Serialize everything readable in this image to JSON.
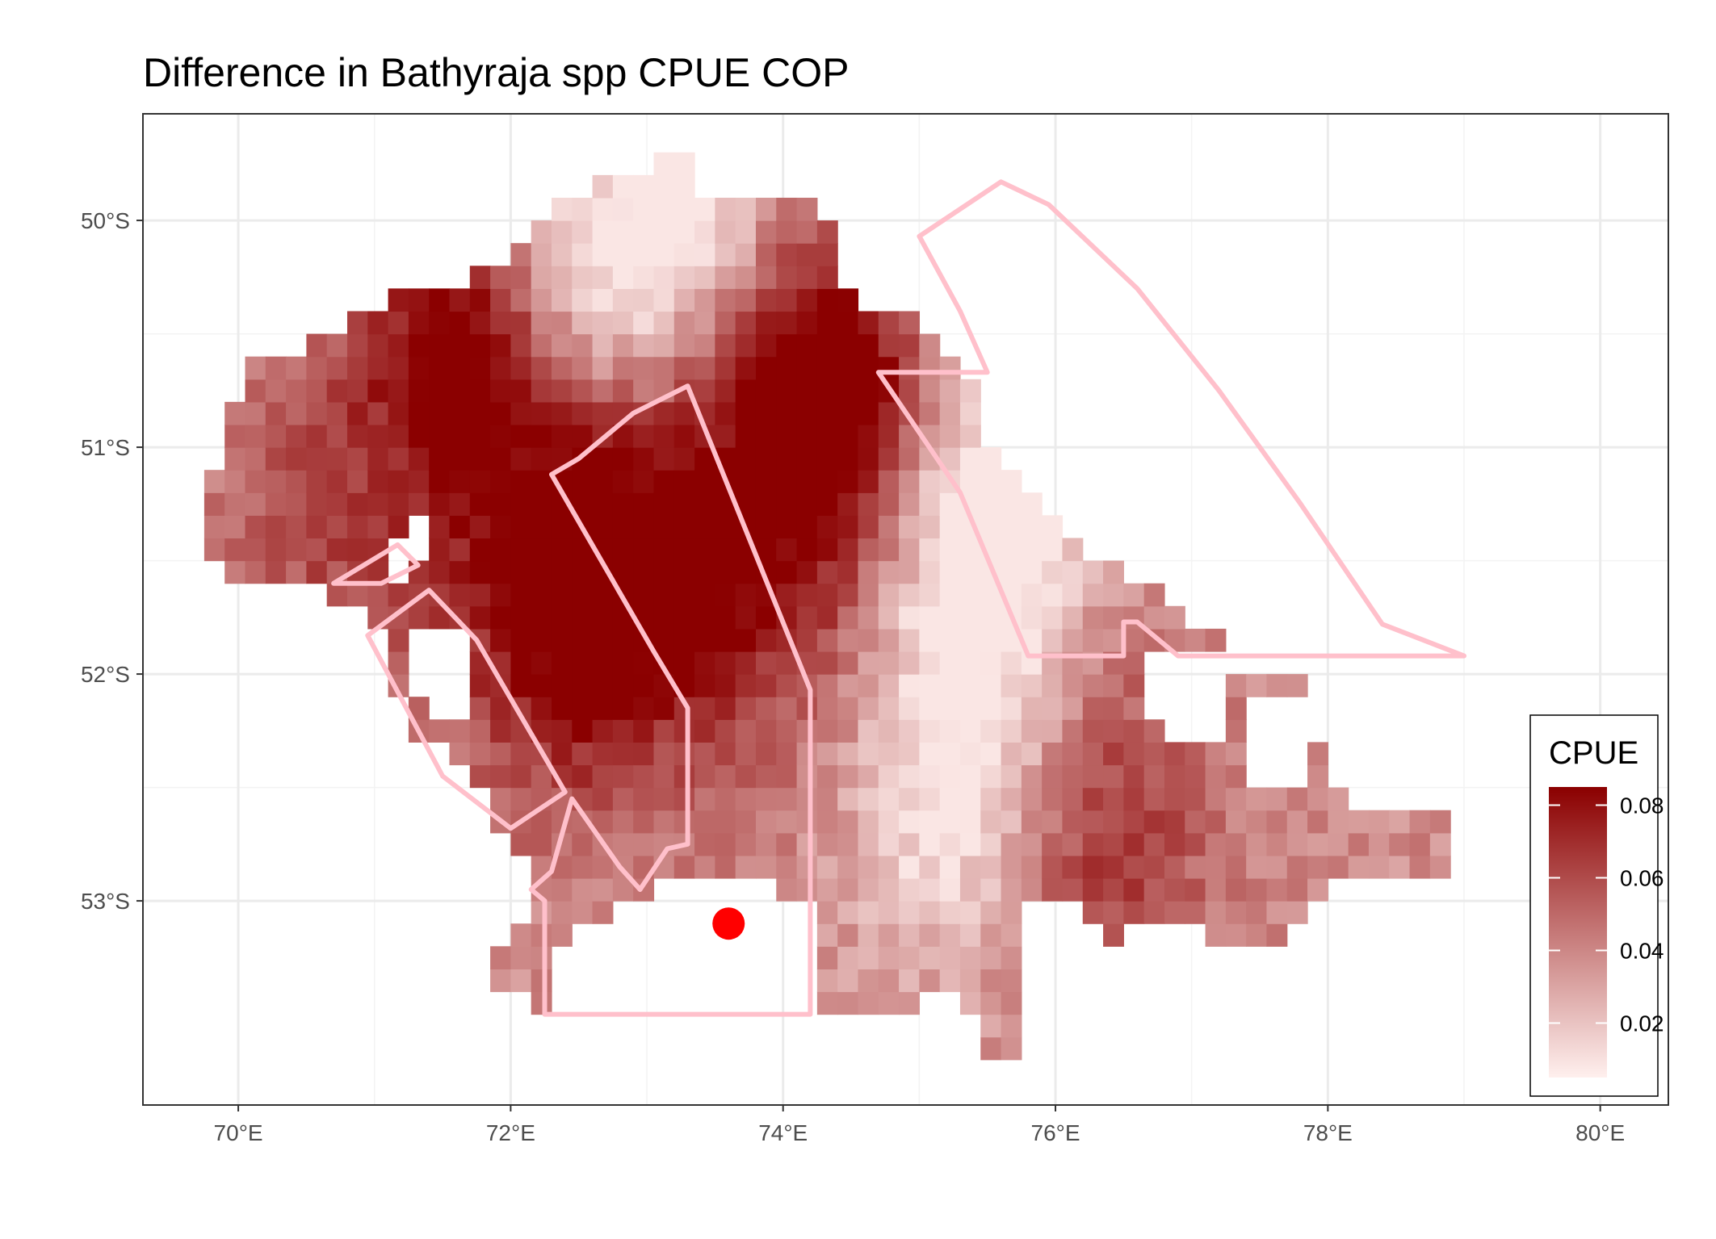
{
  "title": "Difference in  Bathyraja spp CPUE COP",
  "chart_data": {
    "type": "heatmap",
    "title": "Difference in  Bathyraja spp CPUE COP",
    "xlabel": "",
    "ylabel": "",
    "x_unit": "longitude",
    "y_unit": "latitude",
    "xlim": [
      69.3,
      80.5
    ],
    "ylim": [
      -53.9,
      -49.53
    ],
    "grid": true,
    "x_ticks": [
      {
        "value": 70,
        "label": "70°E"
      },
      {
        "value": 72,
        "label": "72°E"
      },
      {
        "value": 74,
        "label": "74°E"
      },
      {
        "value": 76,
        "label": "76°E"
      },
      {
        "value": 78,
        "label": "78°E"
      },
      {
        "value": 80,
        "label": "80°E"
      }
    ],
    "y_ticks": [
      {
        "value": -50,
        "label": "50°S"
      },
      {
        "value": -51,
        "label": "51°S"
      },
      {
        "value": -52,
        "label": "52°S"
      },
      {
        "value": -53,
        "label": "53°S"
      }
    ],
    "cell_size": {
      "lon": 0.15,
      "lat": 0.1
    },
    "extent_outline": [
      [
        73.0,
        -49.7
      ],
      [
        73.3,
        -49.7
      ],
      [
        73.4,
        -49.85
      ],
      [
        73.7,
        -49.9
      ],
      [
        74.3,
        -49.9
      ],
      [
        74.4,
        -50.2
      ],
      [
        74.6,
        -50.4
      ],
      [
        74.9,
        -50.4
      ],
      [
        75.2,
        -50.6
      ],
      [
        75.5,
        -50.7
      ],
      [
        75.5,
        -51.0
      ],
      [
        75.7,
        -51.1
      ],
      [
        75.9,
        -51.2
      ],
      [
        76.1,
        -51.4
      ],
      [
        76.2,
        -51.5
      ],
      [
        76.8,
        -51.6
      ],
      [
        77.0,
        -51.8
      ],
      [
        77.3,
        -51.8
      ],
      [
        77.3,
        -51.95
      ],
      [
        77.8,
        -51.95
      ],
      [
        77.8,
        -52.2
      ],
      [
        78.0,
        -52.3
      ],
      [
        78.0,
        -52.5
      ],
      [
        78.4,
        -52.6
      ],
      [
        78.9,
        -52.65
      ],
      [
        78.9,
        -52.9
      ],
      [
        78.1,
        -52.9
      ],
      [
        77.8,
        -53.1
      ],
      [
        77.6,
        -53.2
      ],
      [
        77.2,
        -53.2
      ],
      [
        77.0,
        -53.1
      ],
      [
        76.6,
        -53.1
      ],
      [
        76.4,
        -53.2
      ],
      [
        76.3,
        -53.1
      ],
      [
        76.0,
        -53.0
      ],
      [
        75.8,
        -53.0
      ],
      [
        75.7,
        -53.4
      ],
      [
        75.7,
        -53.7
      ],
      [
        75.5,
        -53.7
      ],
      [
        75.5,
        -53.5
      ],
      [
        75.1,
        -53.4
      ],
      [
        74.8,
        -53.5
      ],
      [
        74.2,
        -53.5
      ],
      [
        74.2,
        -53.0
      ],
      [
        73.8,
        -52.9
      ],
      [
        73.2,
        -52.9
      ],
      [
        72.9,
        -53.0
      ],
      [
        72.6,
        -53.1
      ],
      [
        72.3,
        -53.3
      ],
      [
        72.3,
        -53.5
      ],
      [
        71.9,
        -53.4
      ],
      [
        71.9,
        -53.2
      ],
      [
        72.2,
        -53.1
      ],
      [
        72.2,
        -52.8
      ],
      [
        71.9,
        -52.7
      ],
      [
        71.7,
        -52.4
      ],
      [
        71.2,
        -52.2
      ],
      [
        71.1,
        -51.85
      ],
      [
        70.7,
        -51.65
      ],
      [
        70.6,
        -51.6
      ],
      [
        70.1,
        -51.6
      ],
      [
        69.8,
        -51.5
      ],
      [
        69.8,
        -51.2
      ],
      [
        69.9,
        -51.0
      ],
      [
        70.0,
        -50.8
      ],
      [
        70.0,
        -50.7
      ],
      [
        70.2,
        -50.6
      ],
      [
        70.8,
        -50.5
      ],
      [
        70.9,
        -50.4
      ],
      [
        71.2,
        -50.3
      ],
      [
        71.6,
        -50.3
      ],
      [
        71.8,
        -50.2
      ],
      [
        72.1,
        -50.1
      ],
      [
        72.3,
        -49.95
      ],
      [
        72.6,
        -49.9
      ],
      [
        72.6,
        -49.8
      ],
      [
        73.0,
        -49.8
      ]
    ],
    "holes": [
      [
        [
          71.0,
          -51.6
        ],
        [
          71.5,
          -51.5
        ],
        [
          71.4,
          -51.3
        ],
        [
          71.2,
          -51.35
        ]
      ],
      [
        [
          71.2,
          -51.75
        ],
        [
          71.7,
          -51.8
        ],
        [
          71.6,
          -52.3
        ],
        [
          71.25,
          -52.1
        ]
      ],
      [
        [
          73.3,
          -53.1
        ],
        [
          74.1,
          -53.0
        ],
        [
          74.2,
          -53.2
        ],
        [
          73.5,
          -53.25
        ],
        [
          73.3,
          -53.2
        ]
      ],
      [
        [
          76.6,
          -51.9
        ],
        [
          77.2,
          -51.95
        ],
        [
          77.3,
          -52.35
        ],
        [
          76.8,
          -52.3
        ]
      ],
      [
        [
          77.4,
          -52.1
        ],
        [
          77.9,
          -52.05
        ],
        [
          77.85,
          -52.5
        ],
        [
          77.45,
          -52.45
        ]
      ]
    ],
    "hotspots": [
      {
        "lon": 72.5,
        "lat": -51.55,
        "strength": 0.85,
        "radius": 0.9
      },
      {
        "lon": 71.6,
        "lat": -50.55,
        "strength": 0.6,
        "radius": 0.6
      },
      {
        "lon": 74.4,
        "lat": -50.75,
        "strength": 0.7,
        "radius": 0.6
      },
      {
        "lon": 73.8,
        "lat": -51.4,
        "strength": 0.5,
        "radius": 0.9
      },
      {
        "lon": 76.3,
        "lat": -52.7,
        "strength": 0.4,
        "radius": 0.8
      },
      {
        "lon": 70.7,
        "lat": -51.2,
        "strength": 0.3,
        "radius": 0.8
      }
    ],
    "coldspots": [
      {
        "lon": 72.7,
        "lat": -50.3,
        "strength": 0.45,
        "radius": 0.7
      },
      {
        "lon": 75.5,
        "lat": -51.4,
        "strength": 0.55,
        "radius": 0.7
      },
      {
        "lon": 75.3,
        "lat": -52.5,
        "strength": 0.45,
        "radius": 0.8
      },
      {
        "lon": 73.3,
        "lat": -49.9,
        "strength": 0.4,
        "radius": 0.5
      }
    ],
    "polygons": [
      {
        "color": "#ffc0cb",
        "points": [
          [
            75.0,
            -50.07
          ],
          [
            75.6,
            -49.83
          ],
          [
            75.95,
            -49.93
          ],
          [
            76.6,
            -50.3
          ],
          [
            77.2,
            -50.75
          ],
          [
            77.8,
            -51.25
          ],
          [
            78.4,
            -51.78
          ],
          [
            79.0,
            -51.92
          ],
          [
            76.9,
            -51.92
          ],
          [
            76.6,
            -51.77
          ],
          [
            76.5,
            -51.77
          ],
          [
            76.5,
            -51.92
          ],
          [
            75.8,
            -51.92
          ],
          [
            75.3,
            -51.2
          ],
          [
            74.7,
            -50.67
          ],
          [
            75.5,
            -50.67
          ],
          [
            75.3,
            -50.4
          ]
        ]
      },
      {
        "color": "#ffc0cb",
        "points": [
          [
            72.3,
            -51.12
          ],
          [
            72.5,
            -51.05
          ],
          [
            72.9,
            -50.85
          ],
          [
            73.3,
            -50.73
          ],
          [
            74.2,
            -52.07
          ],
          [
            74.2,
            -53.5
          ],
          [
            72.25,
            -53.5
          ],
          [
            72.25,
            -53.0
          ],
          [
            72.15,
            -52.95
          ],
          [
            72.3,
            -52.87
          ],
          [
            72.45,
            -52.55
          ],
          [
            72.8,
            -52.85
          ],
          [
            72.95,
            -52.95
          ],
          [
            73.15,
            -52.77
          ],
          [
            73.3,
            -52.75
          ],
          [
            73.3,
            -52.15
          ],
          [
            73.05,
            -51.9
          ]
        ]
      },
      {
        "color": "#ffc0cb",
        "points": [
          [
            70.95,
            -51.83
          ],
          [
            71.4,
            -51.63
          ],
          [
            71.75,
            -51.85
          ],
          [
            72.4,
            -52.52
          ],
          [
            72.0,
            -52.68
          ],
          [
            71.5,
            -52.45
          ]
        ]
      },
      {
        "color": "#ffc0cb",
        "points": [
          [
            70.7,
            -51.6
          ],
          [
            71.17,
            -51.43
          ],
          [
            71.32,
            -51.52
          ],
          [
            71.05,
            -51.6
          ]
        ]
      }
    ],
    "points": [
      {
        "lon": 73.6,
        "lat": -53.1,
        "color": "#ff0000"
      }
    ]
  },
  "legend": {
    "title": "CPUE",
    "placement": "bottom-right",
    "min": 0.005,
    "max": 0.085,
    "low_color": "#fff0ee",
    "high_color": "#8b0000",
    "ticks": [
      {
        "value": 0.02,
        "label": "0.02"
      },
      {
        "value": 0.04,
        "label": "0.04"
      },
      {
        "value": 0.06,
        "label": "0.06"
      },
      {
        "value": 0.08,
        "label": "0.08"
      }
    ]
  }
}
